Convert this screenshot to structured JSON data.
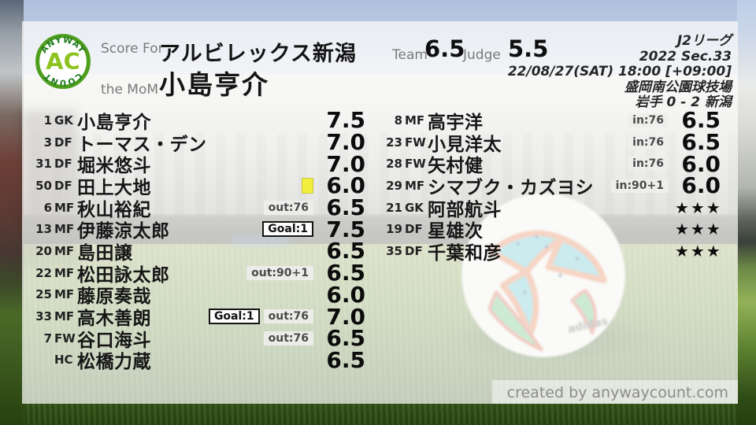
{
  "logo": {
    "arc_top": "ANYWAY",
    "monogram": "AC",
    "arc_bottom": "COUNT"
  },
  "header": {
    "score_for_label": "Score For",
    "team_name": "アルビレックス新潟",
    "mom_label": "the MoM",
    "mom_name": "小島亨介",
    "team_label": "Team",
    "team_score": "6.5",
    "judge_label": "Judge",
    "judge_score": "5.5",
    "info_lines": [
      "J2リーグ",
      "2022 Sec.33",
      "22/08/27(SAT) 18:00 [+09:00]",
      "盛岡南公園球技場",
      "岩手 0 - 2 新潟"
    ]
  },
  "starters": [
    {
      "num": "1",
      "pos": "GK",
      "name": "小島亨介",
      "badges": [],
      "score": "7.5"
    },
    {
      "num": "3",
      "pos": "DF",
      "name": "トーマス・デン",
      "badges": [],
      "score": "7.0"
    },
    {
      "num": "31",
      "pos": "DF",
      "name": "堀米悠斗",
      "badges": [],
      "score": "7.0"
    },
    {
      "num": "50",
      "pos": "DF",
      "name": "田上大地",
      "badges": [],
      "card": "yellow",
      "score": "6.0"
    },
    {
      "num": "6",
      "pos": "MF",
      "name": "秋山裕紀",
      "badges": [
        {
          "style": "sub",
          "text": "out:76"
        }
      ],
      "score": "6.5"
    },
    {
      "num": "13",
      "pos": "MF",
      "name": "伊藤涼太郎",
      "badges": [
        {
          "style": "goal",
          "text": "Goal:1"
        }
      ],
      "score": "7.5"
    },
    {
      "num": "20",
      "pos": "MF",
      "name": "島田譲",
      "badges": [],
      "score": "6.5"
    },
    {
      "num": "22",
      "pos": "MF",
      "name": "松田詠太郎",
      "badges": [
        {
          "style": "sub",
          "text": "out:90+1"
        }
      ],
      "score": "6.5"
    },
    {
      "num": "25",
      "pos": "MF",
      "name": "藤原奏哉",
      "badges": [],
      "score": "6.0"
    },
    {
      "num": "33",
      "pos": "MF",
      "name": "高木善朗",
      "badges": [
        {
          "style": "goal",
          "text": "Goal:1"
        },
        {
          "style": "sub",
          "text": "out:76"
        }
      ],
      "score": "7.0"
    },
    {
      "num": "7",
      "pos": "FW",
      "name": "谷口海斗",
      "badges": [
        {
          "style": "sub",
          "text": "out:76"
        }
      ],
      "score": "6.5"
    },
    {
      "num": "",
      "pos": "HC",
      "name": "松橋力蔵",
      "badges": [],
      "score": "6.5"
    }
  ],
  "subs": [
    {
      "num": "8",
      "pos": "MF",
      "name": "高宇洋",
      "badges": [
        {
          "style": "sub",
          "text": "in:76"
        }
      ],
      "score": "6.5"
    },
    {
      "num": "23",
      "pos": "FW",
      "name": "小見洋太",
      "badges": [
        {
          "style": "sub",
          "text": "in:76"
        }
      ],
      "score": "6.5"
    },
    {
      "num": "28",
      "pos": "FW",
      "name": "矢村健",
      "badges": [
        {
          "style": "sub",
          "text": "in:76"
        }
      ],
      "score": "6.0"
    },
    {
      "num": "29",
      "pos": "MF",
      "name": "シマブク・カズヨシ",
      "badges": [
        {
          "style": "sub",
          "text": "in:90+1"
        }
      ],
      "score": "6.0"
    },
    {
      "num": "21",
      "pos": "GK",
      "name": "阿部航斗",
      "badges": [],
      "score": "★★★"
    },
    {
      "num": "19",
      "pos": "DF",
      "name": "星雄次",
      "badges": [],
      "score": "★★★"
    },
    {
      "num": "35",
      "pos": "DF",
      "name": "千葉和彦",
      "badges": [],
      "score": "★★★"
    }
  ],
  "footer": {
    "credit": "created by anywaycount.com"
  },
  "colors": {
    "logo_ring": "#4e9e1e",
    "logo_monogram": "#8dc21f",
    "logo_arc_text": "#1e7a1e",
    "yellow_card": "#f2ee3e",
    "badge_bg": "#eeeeeb",
    "badge_text": "#4a4a4a",
    "panel_overlay": "#fbfbfa"
  }
}
